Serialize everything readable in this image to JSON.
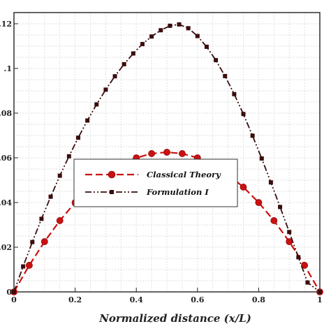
{
  "chart_data": {
    "type": "line",
    "xlabel": "Normalized distance (x/L)",
    "ylabel": "",
    "xlim": [
      0,
      1
    ],
    "ylim": [
      0,
      0.125
    ],
    "x_ticks": [
      "0",
      "0.2",
      "0.4",
      "0.6",
      "0.8",
      "1"
    ],
    "x_tick_values": [
      0,
      0.2,
      0.4,
      0.6,
      0.8,
      1
    ],
    "y_ticks": [
      ".12",
      ".1",
      ".08",
      ".06",
      ".04",
      ".02",
      "0"
    ],
    "y_tick_values": [
      0.12,
      0.1,
      0.08,
      0.06,
      0.04,
      0.02,
      0
    ],
    "grid": true,
    "legend_position": "center-left",
    "series": [
      {
        "name": "Classical Theory",
        "color": "#cc1010",
        "line_style": "dashed",
        "marker": "circle",
        "x": [
          0,
          0.05,
          0.1,
          0.15,
          0.2,
          0.25,
          0.3,
          0.35,
          0.4,
          0.45,
          0.5,
          0.55,
          0.6,
          0.65,
          0.7,
          0.75,
          0.8,
          0.85,
          0.9,
          0.95,
          1
        ],
        "y": [
          0,
          0.0119,
          0.0225,
          0.0319,
          0.04,
          0.0469,
          0.0525,
          0.0569,
          0.06,
          0.0619,
          0.0625,
          0.0619,
          0.06,
          0.0569,
          0.0525,
          0.0469,
          0.04,
          0.0319,
          0.0225,
          0.0119,
          0
        ]
      },
      {
        "name": "Formulation I",
        "color": "#3a0d0d",
        "line_style": "dash-dot-dot",
        "marker": "square",
        "x": [
          0,
          0.03,
          0.06,
          0.09,
          0.12,
          0.15,
          0.18,
          0.21,
          0.24,
          0.27,
          0.3,
          0.33,
          0.36,
          0.39,
          0.42,
          0.45,
          0.48,
          0.51,
          0.54,
          0.57,
          0.6,
          0.63,
          0.66,
          0.69,
          0.72,
          0.75,
          0.78,
          0.81,
          0.84,
          0.87,
          0.9,
          0.93,
          0.96,
          1
        ],
        "y": [
          0,
          0.0114,
          0.0223,
          0.0327,
          0.0426,
          0.052,
          0.0607,
          0.069,
          0.0767,
          0.0839,
          0.0905,
          0.0965,
          0.1019,
          0.1067,
          0.1109,
          0.1143,
          0.1171,
          0.1191,
          0.1197,
          0.118,
          0.1145,
          0.1097,
          0.1037,
          0.0966,
          0.0885,
          0.0796,
          0.0699,
          0.0597,
          0.049,
          0.038,
          0.0268,
          0.0155,
          0.0042,
          0
        ]
      }
    ]
  }
}
